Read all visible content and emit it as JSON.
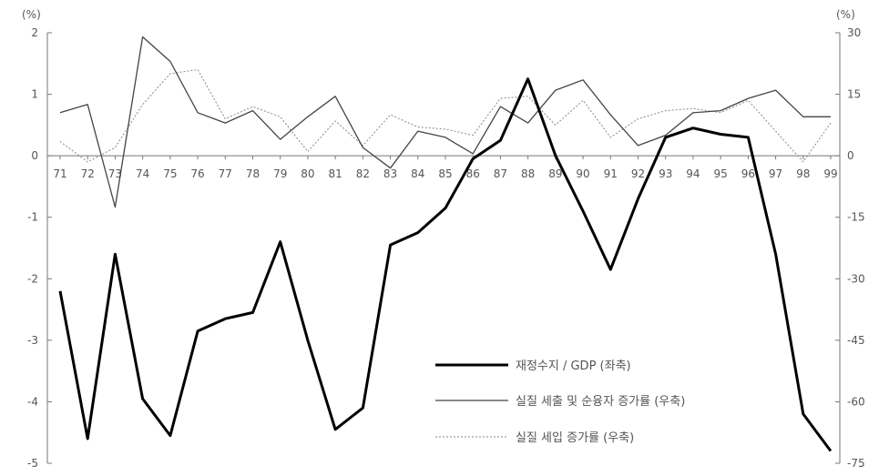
{
  "chart_data": {
    "type": "line",
    "categories": [
      "71",
      "72",
      "73",
      "74",
      "75",
      "76",
      "77",
      "78",
      "79",
      "80",
      "81",
      "82",
      "83",
      "84",
      "85",
      "86",
      "87",
      "88",
      "89",
      "90",
      "91",
      "92",
      "93",
      "94",
      "95",
      "96",
      "97",
      "98",
      "99"
    ],
    "left_axis": {
      "unit": "(%)",
      "ylim": [
        -5,
        2
      ],
      "ticks": [
        "2",
        "1",
        "0",
        "-1",
        "-2",
        "-3",
        "-4",
        "-5"
      ]
    },
    "right_axis": {
      "unit": "(%)",
      "ylim": [
        -75,
        30
      ],
      "ticks": [
        "30",
        "15",
        "0",
        "-15",
        "-30",
        "-45",
        "-60",
        "-75"
      ]
    },
    "series": [
      {
        "name": "재정수지 / GDP (좌축)",
        "axis": "left",
        "style": "thick-solid",
        "color": "#000000",
        "values": [
          -2.2,
          -4.6,
          -1.6,
          -3.95,
          -4.55,
          -2.85,
          -2.65,
          -2.55,
          -1.4,
          -3.0,
          -4.45,
          -4.1,
          -1.45,
          -1.25,
          -0.85,
          -0.05,
          0.25,
          1.25,
          0.0,
          -0.9,
          -1.85,
          -0.7,
          0.3,
          0.45,
          0.35,
          0.3,
          -1.6,
          -4.2,
          -4.8
        ]
      },
      {
        "name": "실질 세출 및 순융자 증가률 (우축)",
        "axis": "right",
        "style": "thin-solid",
        "color": "#444444",
        "values": [
          10.5,
          12.5,
          -12.5,
          29,
          23,
          10.5,
          8,
          11,
          4,
          9.5,
          14.5,
          2,
          -3,
          6,
          4.5,
          0.5,
          12,
          8,
          16,
          18.5,
          10,
          2.5,
          5,
          10.5,
          11,
          14,
          16,
          9.5,
          9.5
        ]
      },
      {
        "name": "실질 세입 증가률 (우축)",
        "axis": "right",
        "style": "dotted",
        "color": "#888888",
        "values": [
          3.5,
          -1.5,
          2,
          12.5,
          20,
          21,
          9,
          12,
          9.5,
          1,
          8.5,
          2.5,
          10,
          7,
          6.5,
          5,
          14,
          14.5,
          7.5,
          13.5,
          4.5,
          9,
          11,
          11.5,
          10.5,
          13.5,
          6,
          -1.5,
          8
        ]
      }
    ],
    "grid": false,
    "legend_position": "lower-right"
  }
}
